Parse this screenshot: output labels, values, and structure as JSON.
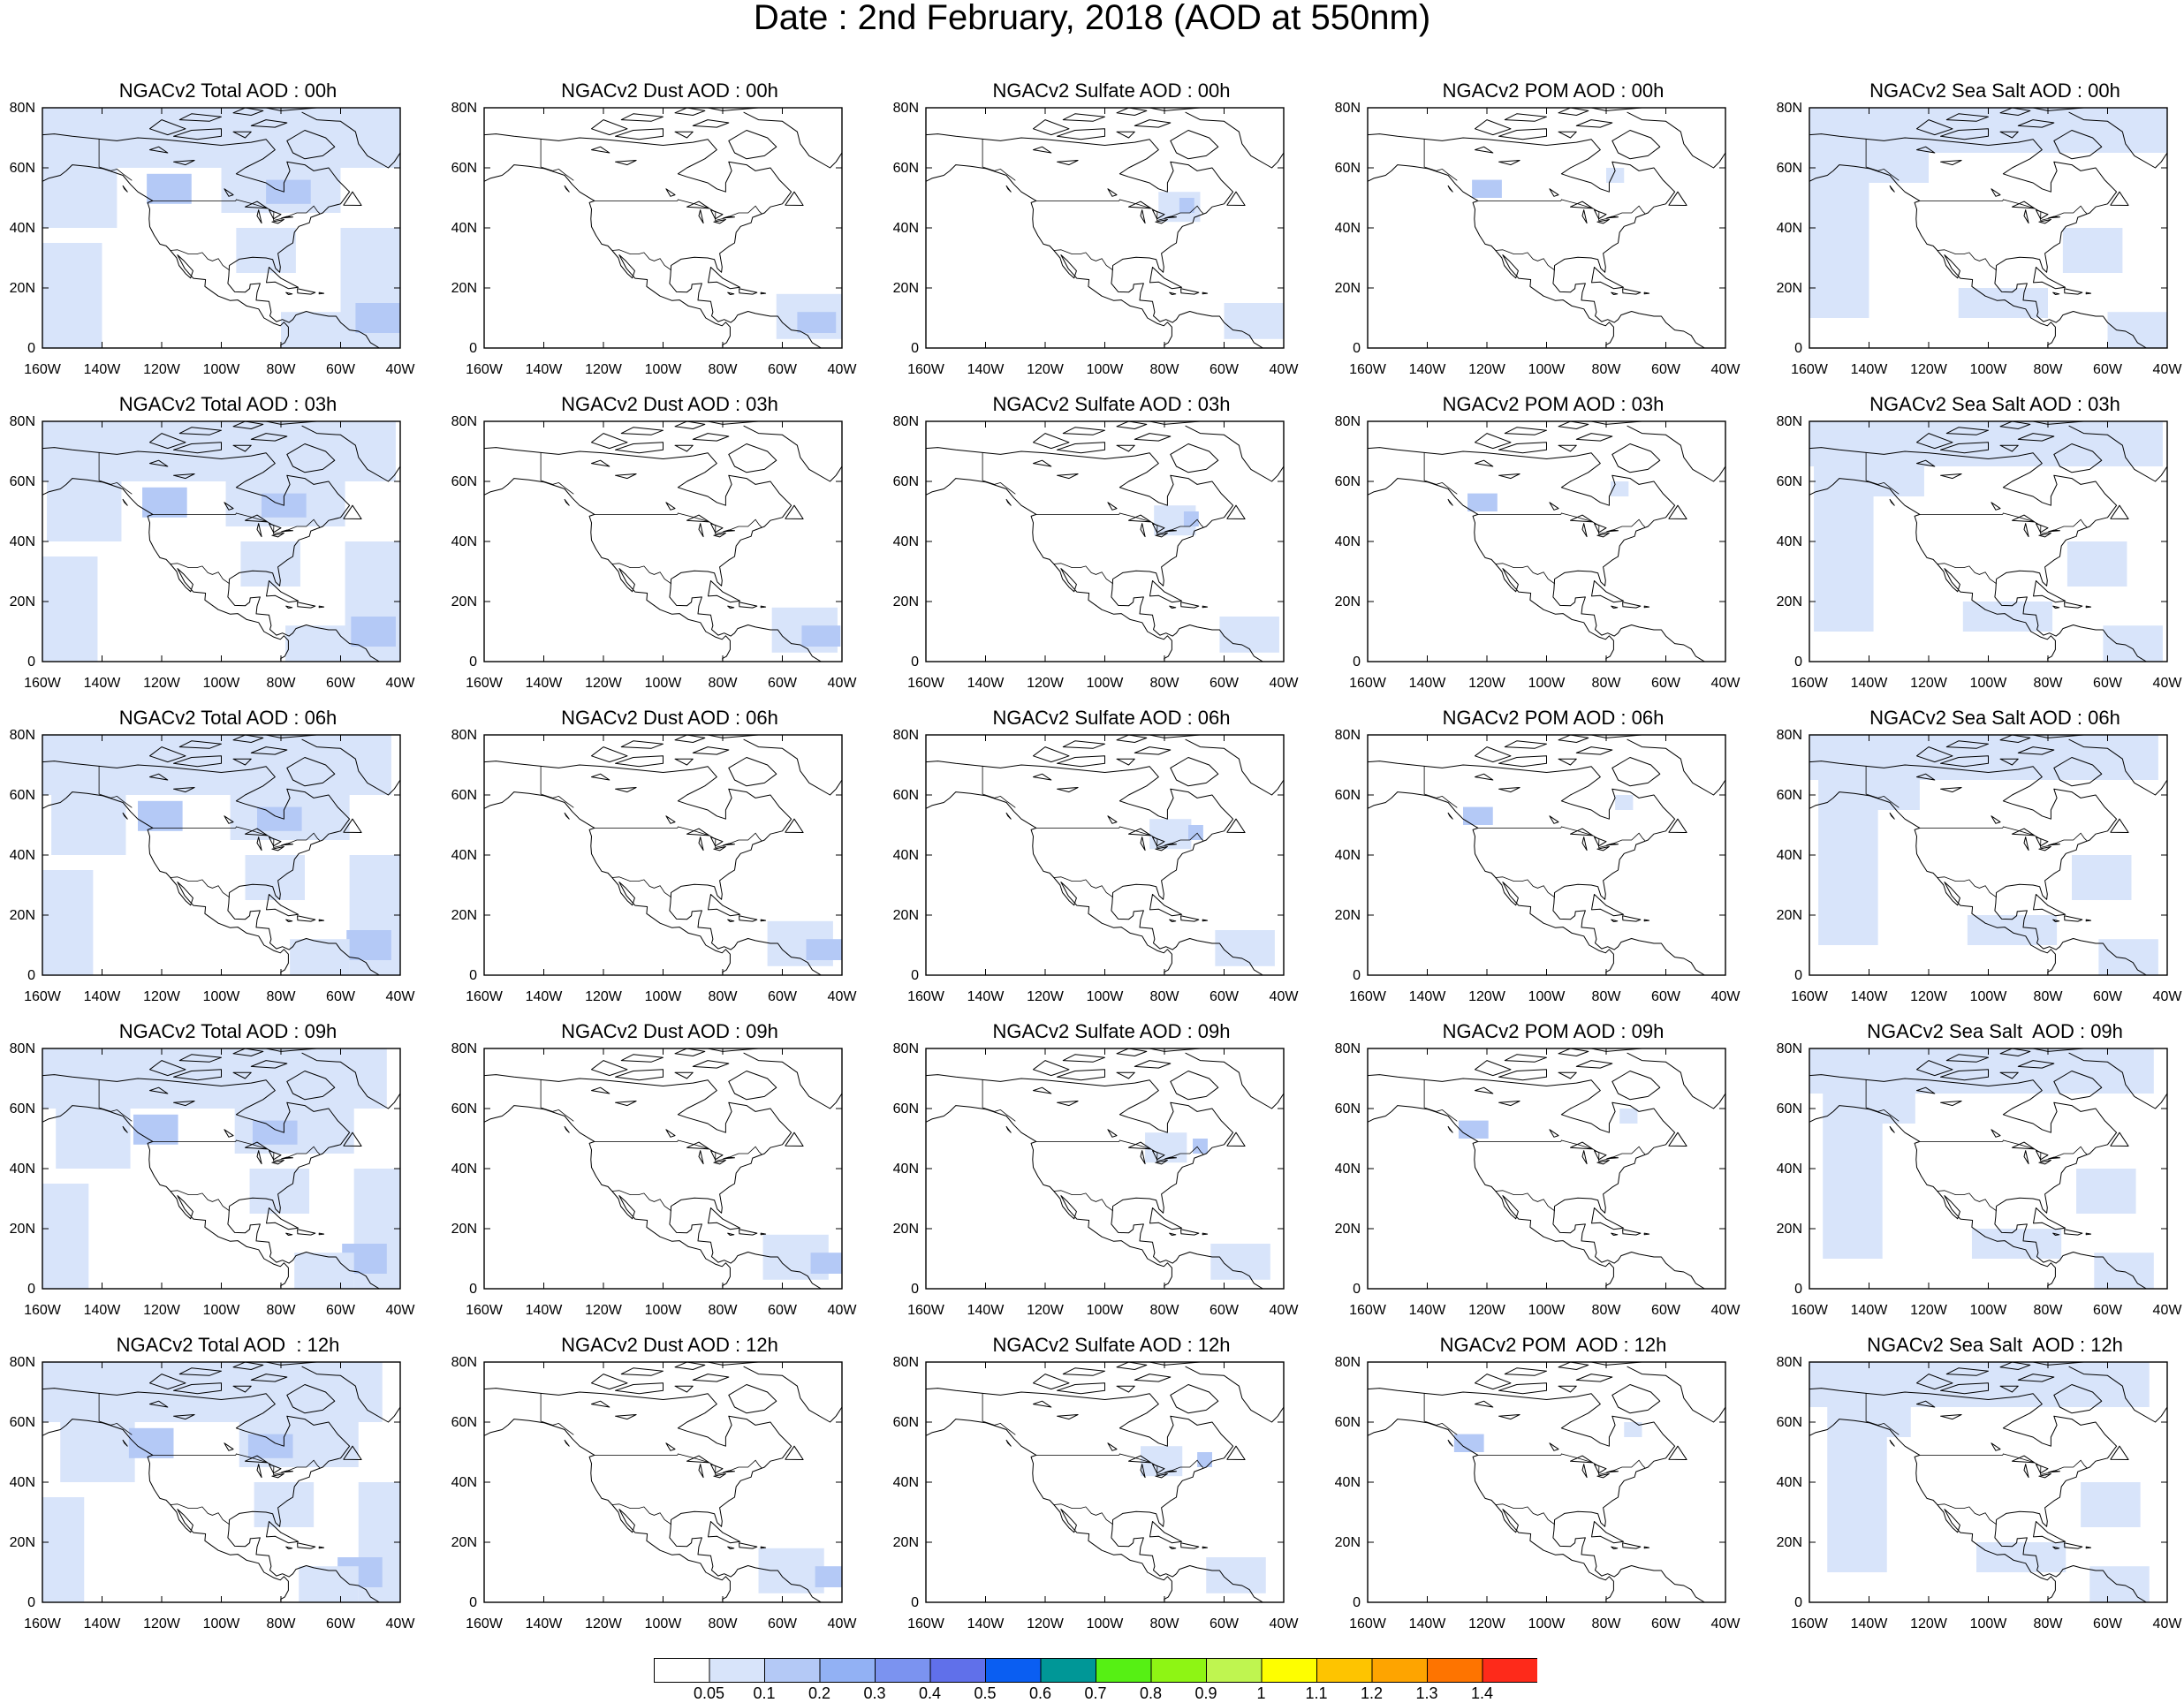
{
  "title": "Date : 2nd February, 2018 (AOD at 550nm)",
  "columns": [
    {
      "key": "total",
      "titles": [
        "NGACv2 Total AOD : 00h",
        "NGACv2 Total AOD : 03h",
        "NGACv2 Total AOD : 06h",
        "NGACv2 Total AOD : 09h",
        "NGACv2 Total AOD  : 12h"
      ]
    },
    {
      "key": "dust",
      "titles": [
        "NGACv2 Dust AOD : 00h",
        "NGACv2 Dust AOD : 03h",
        "NGACv2 Dust AOD : 06h",
        "NGACv2 Dust AOD : 09h",
        "NGACv2 Dust AOD : 12h"
      ]
    },
    {
      "key": "sulfate",
      "titles": [
        "NGACv2 Sulfate AOD : 00h",
        "NGACv2 Sulfate AOD : 03h",
        "NGACv2 Sulfate AOD : 06h",
        "NGACv2 Sulfate AOD : 09h",
        "NGACv2 Sulfate AOD : 12h"
      ]
    },
    {
      "key": "pom",
      "titles": [
        "NGACv2 POM AOD : 00h",
        "NGACv2 POM AOD : 03h",
        "NGACv2 POM AOD : 06h",
        "NGACv2 POM AOD : 09h",
        "NGACv2 POM  AOD : 12h"
      ]
    },
    {
      "key": "seasalt",
      "titles": [
        "NGACv2 Sea Salt AOD : 00h",
        "NGACv2 Sea Salt AOD : 03h",
        "NGACv2 Sea Salt AOD : 06h",
        "NGACv2 Sea Salt  AOD : 09h",
        "NGACv2 Sea Salt  AOD : 12h"
      ]
    }
  ],
  "axes": {
    "lon_ticks": [
      "160W",
      "140W",
      "120W",
      "100W",
      "80W",
      "60W",
      "40W"
    ],
    "lat_ticks": [
      "0",
      "20N",
      "40N",
      "60N",
      "80N"
    ],
    "lon_range": [
      -160,
      -40
    ],
    "lat_range": [
      0,
      80
    ]
  },
  "colorbar": {
    "colors": [
      "#ffffff",
      "#d8e4fa",
      "#b4c9f6",
      "#92b1f4",
      "#7b93f0",
      "#6070ea",
      "#0a5ef2",
      "#009797",
      "#56f014",
      "#8ef514",
      "#bff550",
      "#fefe00",
      "#fec400",
      "#fea400",
      "#fe7400",
      "#fe2a1a"
    ],
    "labels": [
      "0.05",
      "0.1",
      "0.2",
      "0.3",
      "0.4",
      "0.5",
      "0.6",
      "0.7",
      "0.8",
      "0.9",
      "1",
      "1.1",
      "1.2",
      "1.3",
      "1.4"
    ]
  },
  "aerosol_fields": {
    "description_levels": "AOD bins shown as fill levels 0-3 mapped to colorbar colors",
    "total": [
      {
        "lon": [
          -160,
          -40
        ],
        "lat": [
          60,
          80
        ],
        "level": 1
      },
      {
        "lon": [
          -160,
          -135
        ],
        "lat": [
          40,
          60
        ],
        "level": 1
      },
      {
        "lon": [
          -125,
          -110
        ],
        "lat": [
          48,
          58
        ],
        "level": 2
      },
      {
        "lon": [
          -100,
          -60
        ],
        "lat": [
          45,
          60
        ],
        "level": 1
      },
      {
        "lon": [
          -85,
          -70
        ],
        "lat": [
          48,
          56
        ],
        "level": 2
      },
      {
        "lon": [
          -60,
          -40
        ],
        "lat": [
          0,
          40
        ],
        "level": 1
      },
      {
        "lon": [
          -55,
          -40
        ],
        "lat": [
          5,
          15
        ],
        "level": 2
      },
      {
        "lon": [
          -95,
          -75
        ],
        "lat": [
          25,
          40
        ],
        "level": 1
      },
      {
        "lon": [
          -160,
          -140
        ],
        "lat": [
          0,
          35
        ],
        "level": 1
      },
      {
        "lon": [
          -80,
          -60
        ],
        "lat": [
          0,
          12
        ],
        "level": 1
      }
    ],
    "dust": [
      {
        "lon": [
          -62,
          -40
        ],
        "lat": [
          3,
          18
        ],
        "level": 1
      },
      {
        "lon": [
          -55,
          -42
        ],
        "lat": [
          5,
          12
        ],
        "level": 2
      }
    ],
    "sulfate": [
      {
        "lon": [
          -82,
          -68
        ],
        "lat": [
          42,
          52
        ],
        "level": 1
      },
      {
        "lon": [
          -75,
          -70
        ],
        "lat": [
          45,
          50
        ],
        "level": 2
      },
      {
        "lon": [
          -60,
          -40
        ],
        "lat": [
          3,
          15
        ],
        "level": 1
      }
    ],
    "pom": [
      {
        "lon": [
          -125,
          -115
        ],
        "lat": [
          50,
          56
        ],
        "level": 2
      },
      {
        "lon": [
          -80,
          -74
        ],
        "lat": [
          55,
          60
        ],
        "level": 1
      }
    ],
    "seasalt": [
      {
        "lon": [
          -160,
          -40
        ],
        "lat": [
          65,
          80
        ],
        "level": 1
      },
      {
        "lon": [
          -160,
          -140
        ],
        "lat": [
          10,
          65
        ],
        "level": 1
      },
      {
        "lon": [
          -140,
          -120
        ],
        "lat": [
          55,
          65
        ],
        "level": 1
      },
      {
        "lon": [
          -75,
          -55
        ],
        "lat": [
          25,
          40
        ],
        "level": 1
      },
      {
        "lon": [
          -60,
          -40
        ],
        "lat": [
          0,
          12
        ],
        "level": 1
      },
      {
        "lon": [
          -110,
          -80
        ],
        "lat": [
          10,
          20
        ],
        "level": 1
      }
    ]
  }
}
